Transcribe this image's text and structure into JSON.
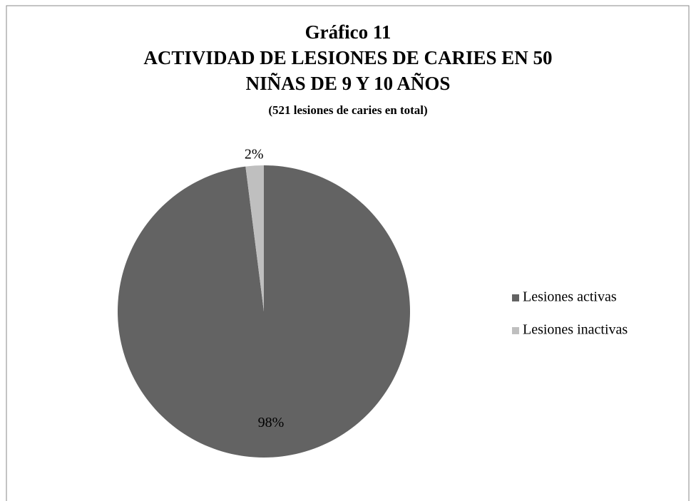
{
  "chart_data": {
    "type": "pie",
    "title": [
      "Gráfico 11",
      "ACTIVIDAD DE LESIONES DE CARIES EN 50",
      "NIÑAS DE 9 Y 10 AÑOS"
    ],
    "subtitle": "(521 lesiones de caries en total)",
    "categories": [
      "Lesiones activas",
      "Lesiones inactivas"
    ],
    "values": [
      98,
      2
    ],
    "value_labels": [
      "98%",
      "2%"
    ],
    "colors": [
      "#636363",
      "#bfbfbf"
    ],
    "legend": "right"
  }
}
